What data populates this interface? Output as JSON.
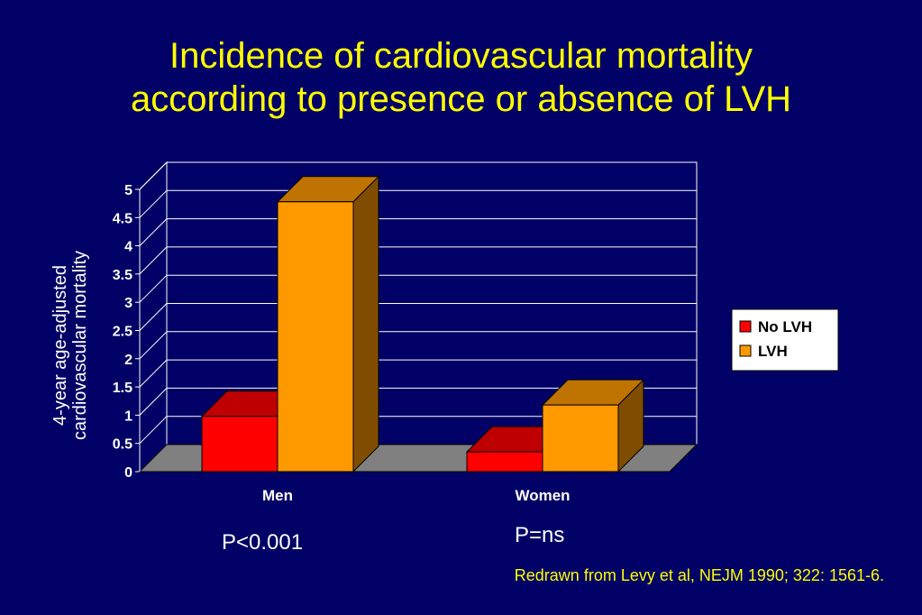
{
  "title_line1": "Incidence of cardiovascular mortality",
  "title_line2": "according to presence or absence of LVH",
  "chart_data": {
    "type": "bar",
    "categories": [
      "Men",
      "Women"
    ],
    "series": [
      {
        "name": "No LVH",
        "values": [
          0.98,
          0.35
        ],
        "color": "#ff0000"
      },
      {
        "name": "LVH",
        "values": [
          4.78,
          1.18
        ],
        "color": "#ff9900"
      }
    ],
    "ylabel_line1": "4-year age-adjusted",
    "ylabel_line2": "cardiovascular mortality",
    "ylim": [
      0,
      5
    ],
    "yticks": [
      "0",
      "0.5",
      "1",
      "1.5",
      "2",
      "2.5",
      "3",
      "3.5",
      "4",
      "4.5",
      "5"
    ],
    "grid": true,
    "legend_position": "right",
    "three_d": true
  },
  "annotations": {
    "men_p": "P<0.001",
    "women_p": "P=ns"
  },
  "source": "Redrawn from Levy et al, NEJM 1990; 322: 1561-6."
}
